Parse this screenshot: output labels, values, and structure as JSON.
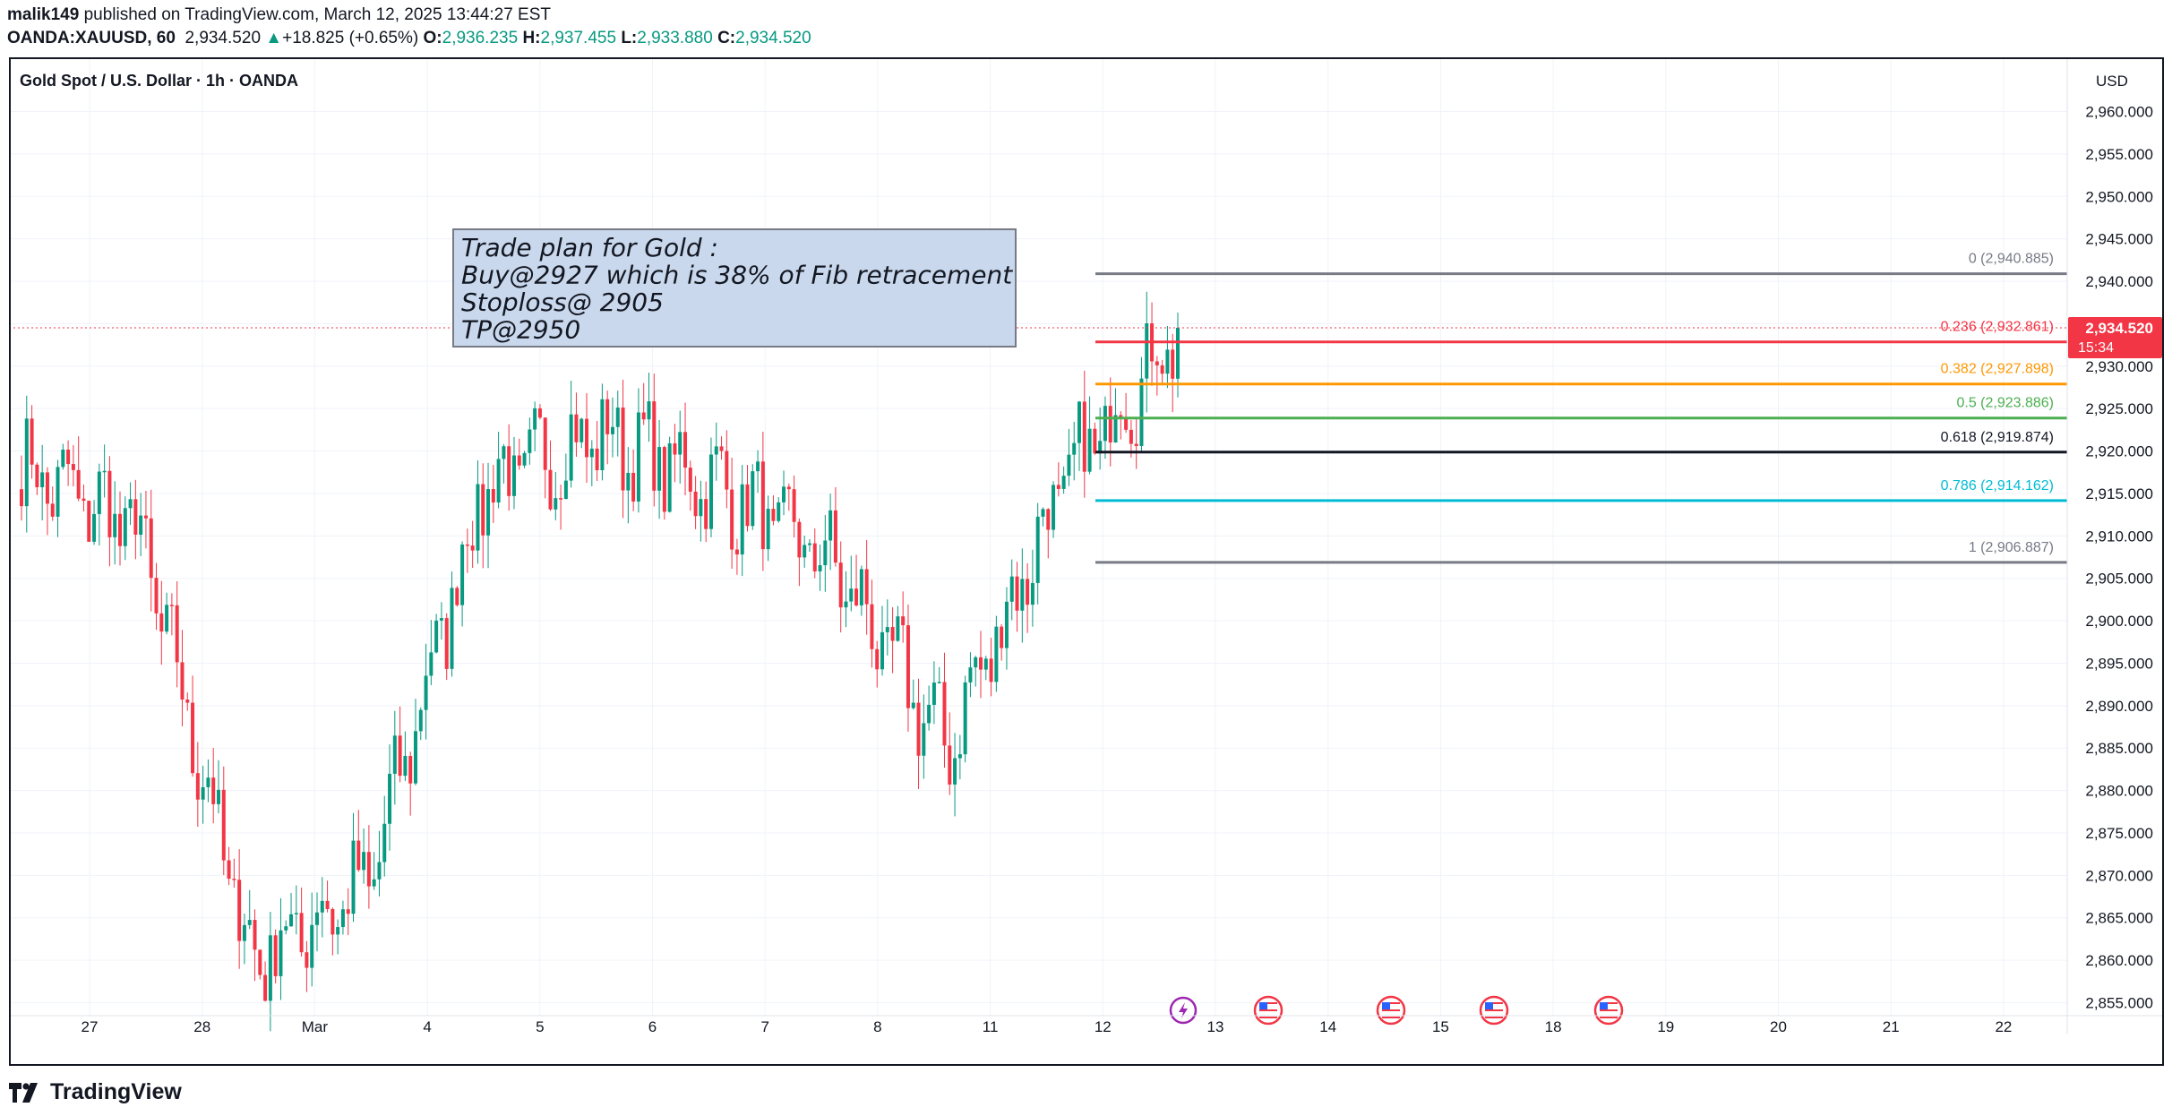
{
  "header": {
    "author": "malik149",
    "published": "published on TradingView.com, March 12, 2025 13:44:27 EST",
    "symbol_line": "OANDA:XAUUSD, 60",
    "last": "2,934.520",
    "change": "+18.825 (+0.65%)",
    "o_label": "O:",
    "o_value": "2,936.235",
    "h_label": "H:",
    "h_value": "2,937.455",
    "l_label": "L:",
    "l_value": "2,933.880",
    "c_label": "C:",
    "c_value": "2,934.520"
  },
  "footer": {
    "brand": "TradingView"
  },
  "colors": {
    "up": "#089981",
    "down": "#f23645",
    "grid": "#f0f3fa",
    "fib_0": "#787b86",
    "fib_236": "#f23645",
    "fib_382": "#ff9800",
    "fib_5": "#4caf50",
    "fib_618": "#131722",
    "fib_786": "#00bcd4",
    "fib_1": "#787b86"
  },
  "chart_data": {
    "type": "candlestick",
    "title": "Gold Spot / U.S. Dollar · 1h · OANDA",
    "currency": "USD",
    "ylim": [
      2850,
      2963
    ],
    "y_ticks": [
      2855,
      2860,
      2865,
      2870,
      2875,
      2880,
      2885,
      2890,
      2895,
      2900,
      2905,
      2910,
      2915,
      2920,
      2925,
      2930,
      2935,
      2940,
      2945,
      2950,
      2955,
      2960
    ],
    "y_tick_labels": [
      "2,855.000",
      "2,860.000",
      "2,865.000",
      "2,870.000",
      "2,875.000",
      "2,880.000",
      "2,885.000",
      "2,890.000",
      "2,895.000",
      "2,900.000",
      "2,905.000",
      "2,910.000",
      "2,915.000",
      "2,920.000",
      "2,925.000",
      "2,930.000",
      "2,935.000",
      "2,940.000",
      "2,945.000",
      "2,950.000",
      "2,955.000",
      "2,960.000"
    ],
    "x_labels": [
      "27",
      "28",
      "Mar",
      "4",
      "5",
      "6",
      "7",
      "8",
      "11",
      "12",
      "13",
      "14",
      "15",
      "18",
      "19",
      "20",
      "21",
      "22"
    ],
    "current_price": {
      "value": 2934.52,
      "label": "2,934.520",
      "countdown": "15:34"
    },
    "session_closes": [
      2918,
      2911,
      2860,
      2869,
      2916,
      2922,
      2916,
      2907,
      2885,
      2916,
      2934.52
    ],
    "candle_count": 224,
    "fib": {
      "levels": [
        {
          "ratio": 0,
          "label": "0 (2,940.885)",
          "price": 2940.885,
          "color": "#787b86"
        },
        {
          "ratio": 0.236,
          "label": "0.236 (2,932.861)",
          "price": 2932.861,
          "color": "#f23645"
        },
        {
          "ratio": 0.382,
          "label": "0.382 (2,927.898)",
          "price": 2927.898,
          "color": "#ff9800"
        },
        {
          "ratio": 0.5,
          "label": "0.5 (2,923.886)",
          "price": 2923.886,
          "color": "#4caf50"
        },
        {
          "ratio": 0.618,
          "label": "0.618 (2,919.874)",
          "price": 2919.874,
          "color": "#131722"
        },
        {
          "ratio": 0.786,
          "label": "0.786 (2,914.162)",
          "price": 2914.162,
          "color": "#00bcd4"
        },
        {
          "ratio": 1,
          "label": "1 (2,906.887)",
          "price": 2906.887,
          "color": "#787b86"
        }
      ]
    },
    "note": {
      "lines": [
        "Trade plan for Gold :",
        "Buy@2927 which is 38% of Fib retracement",
        "Stoploss@ 2905",
        "TP@2950"
      ]
    },
    "events": [
      {
        "kind": "lightning",
        "color": "#9c27b0"
      },
      {
        "kind": "us-flag"
      },
      {
        "kind": "us-flag"
      },
      {
        "kind": "us-flag"
      },
      {
        "kind": "us-flag"
      }
    ]
  }
}
